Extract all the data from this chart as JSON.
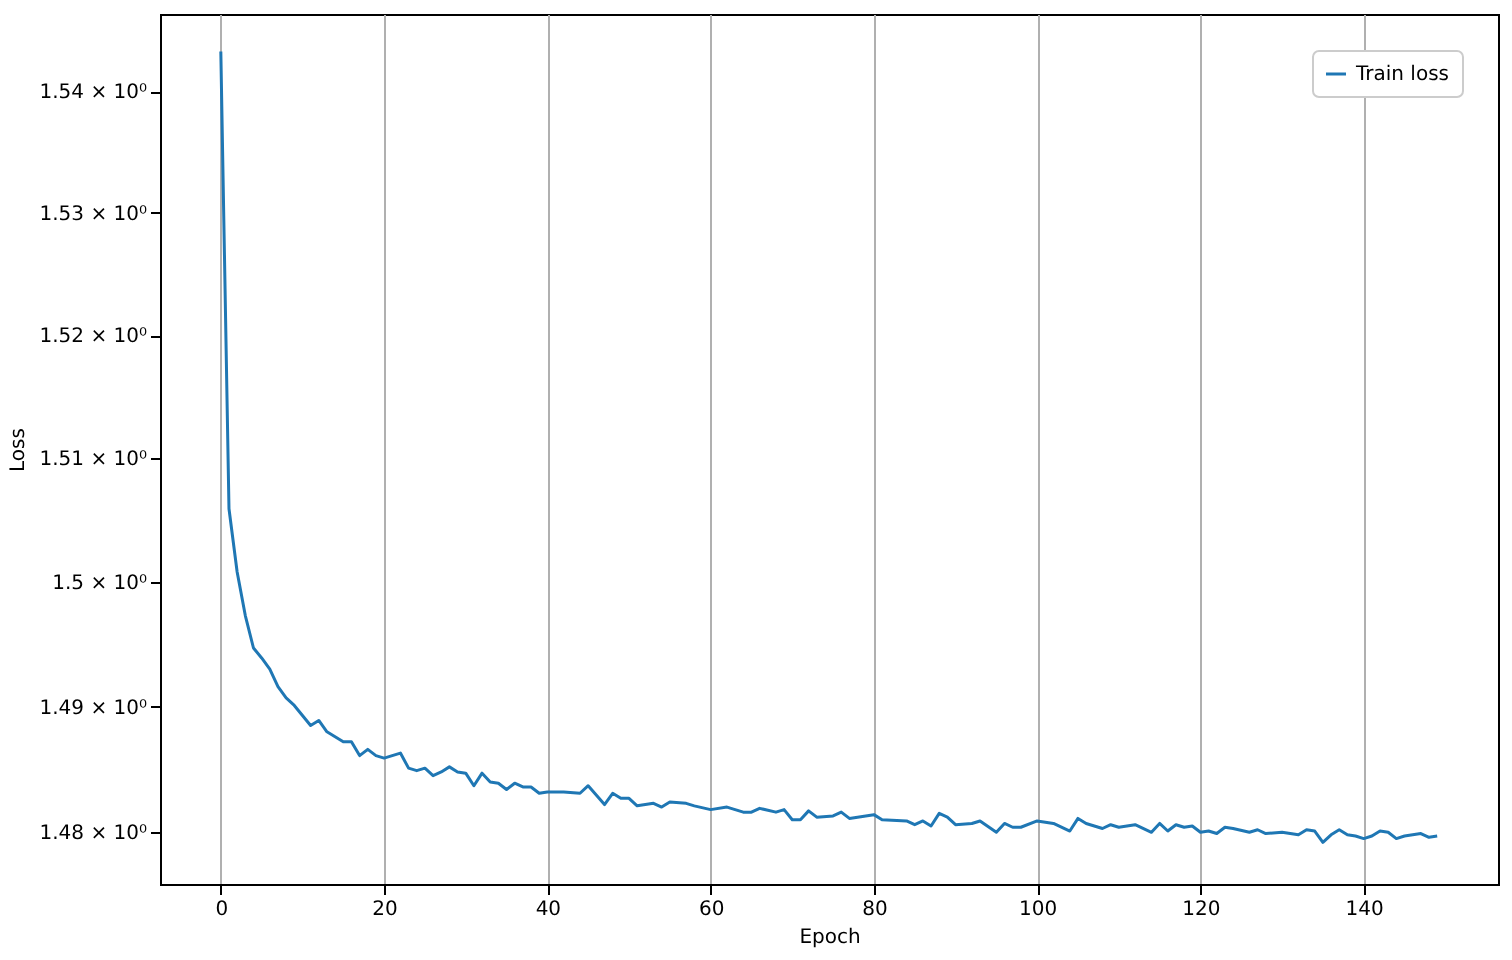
{
  "chart_data": {
    "type": "line",
    "xlabel": "Epoch",
    "ylabel": "Loss",
    "log": "y",
    "grid": "x",
    "legend": "top right",
    "xlim": [
      -7.45,
      156.45
    ],
    "xticks": [
      0,
      20,
      40,
      60,
      80,
      100,
      120,
      140
    ],
    "ylim": [
      1.4759,
      1.5464
    ],
    "yticks": [
      {
        "value": 1.48,
        "label": "1.48 × 10⁰"
      },
      {
        "value": 1.49,
        "label": "1.49 × 10⁰"
      },
      {
        "value": 1.5,
        "label": "1.5 × 10⁰"
      },
      {
        "value": 1.51,
        "label": "1.51 × 10⁰"
      },
      {
        "value": 1.52,
        "label": "1.52 × 10⁰"
      },
      {
        "value": 1.53,
        "label": "1.53 × 10⁰"
      },
      {
        "value": 1.54,
        "label": "1.54 × 10⁰"
      }
    ],
    "series": [
      {
        "name": "Train loss",
        "color": "#1f77b4",
        "x": [
          0,
          1,
          2,
          3,
          4,
          5,
          6,
          7,
          8,
          9,
          10,
          11,
          12,
          13,
          14,
          15,
          16,
          17,
          18,
          19,
          20,
          21,
          22,
          23,
          24,
          25,
          26,
          27,
          28,
          29,
          30,
          31,
          32,
          33,
          34,
          35,
          36,
          37,
          38,
          39,
          40,
          42,
          44,
          45,
          47,
          48,
          49,
          50,
          51,
          53,
          54,
          55,
          57,
          58,
          60,
          62,
          64,
          65,
          66,
          68,
          69,
          70,
          71,
          72,
          73,
          75,
          76,
          77,
          80,
          81,
          84,
          85,
          86,
          87,
          88,
          89,
          90,
          92,
          93,
          95,
          96,
          97,
          98,
          100,
          102,
          104,
          105,
          106,
          108,
          109,
          110,
          112,
          114,
          115,
          116,
          117,
          118,
          119,
          120,
          121,
          122,
          123,
          124,
          126,
          127,
          128,
          130,
          132,
          133,
          134,
          135,
          136,
          137,
          138,
          139,
          140,
          141,
          142,
          143,
          144,
          145,
          147,
          148,
          149
        ],
        "values": [
          1.5433,
          1.5059,
          1.5008,
          1.4973,
          1.4947,
          1.4939,
          1.493,
          1.4916,
          1.4907,
          1.4901,
          1.4893,
          1.4885,
          1.4889,
          1.488,
          1.4876,
          1.4872,
          1.4872,
          1.4861,
          1.4866,
          1.4861,
          1.4859,
          1.4861,
          1.4863,
          1.4851,
          1.4849,
          1.4851,
          1.4845,
          1.4848,
          1.4852,
          1.4848,
          1.4847,
          1.4837,
          1.4847,
          1.484,
          1.4839,
          1.4834,
          1.4839,
          1.4836,
          1.4836,
          1.4831,
          1.4832,
          1.4832,
          1.4831,
          1.4837,
          1.4822,
          1.4831,
          1.4827,
          1.4827,
          1.4821,
          1.4823,
          1.482,
          1.4824,
          1.4823,
          1.4821,
          1.4818,
          1.482,
          1.4816,
          1.4816,
          1.4819,
          1.4816,
          1.4818,
          1.481,
          1.481,
          1.4817,
          1.4812,
          1.4813,
          1.4816,
          1.4811,
          1.4814,
          1.481,
          1.4809,
          1.4806,
          1.4809,
          1.4805,
          1.4815,
          1.4812,
          1.4806,
          1.4807,
          1.4809,
          1.48,
          1.4807,
          1.4804,
          1.4804,
          1.4809,
          1.4807,
          1.4801,
          1.4811,
          1.4807,
          1.4803,
          1.4806,
          1.4804,
          1.4806,
          1.48,
          1.4807,
          1.4801,
          1.4806,
          1.4804,
          1.4805,
          1.48,
          1.4801,
          1.4799,
          1.4804,
          1.4803,
          1.48,
          1.4802,
          1.4799,
          1.48,
          1.4798,
          1.4802,
          1.4801,
          1.4792,
          1.4798,
          1.4802,
          1.4798,
          1.4797,
          1.4795,
          1.4797,
          1.4801,
          1.48,
          1.4795,
          1.4797,
          1.4799,
          1.4796,
          1.4797
        ]
      }
    ]
  }
}
